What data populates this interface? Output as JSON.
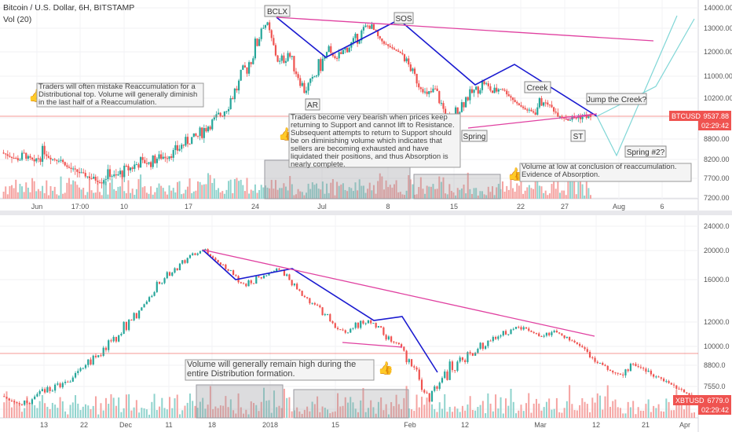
{
  "header": {
    "title": "Bitcoin / U.S. Dollar, 6H, BITSTAMP",
    "volume_label": "Vol (20)"
  },
  "colors": {
    "up": "#26a69a",
    "down": "#ef5350",
    "up_vol": "#8fd3cd",
    "down_vol": "#f5a3a1",
    "trend_blue": "#1a1ad0",
    "trend_pink": "#e040a0",
    "projection": "#7fd6d6",
    "price_tag": "#ef5350"
  },
  "top_panel": {
    "symbol": "BTCUSD",
    "last_price": "9537.88",
    "countdown": "02:29:42",
    "y_ticks": [
      "14000.00",
      "13000.00",
      "12000.00",
      "11000.00",
      "10200.00",
      "9500.00",
      "8800.00",
      "8200.00",
      "7700.00",
      "7200.00"
    ],
    "x_ticks": [
      "Jun",
      "17:00",
      "10",
      "17",
      "24",
      "Jul",
      "8",
      "15",
      "22",
      "27",
      "Aug",
      "6"
    ],
    "labels": {
      "bclx": "BCLX",
      "sos": "SOS",
      "ar": "AR",
      "creek": "Creek",
      "jump": "Jump the Creek?",
      "spring": "Spring",
      "st": "ST",
      "spring2": "Spring #2?"
    },
    "notes": {
      "reaccumulation": "Traders will often mistake Reaccumulation for a Distributional top. Volume will generally diminish in the last half of a Reaccumulation.",
      "bearish": "Traders become very bearish when prices keep returning to Support and cannot lift to Resistance. Subsequent attempts to return to Support should be on diminishing volume which indicates that sellers are becoming exhausted and have liquidated their positions, and thus Absorption is nearly complete.",
      "absorption": "Volume at low at conclusion of reaccumulation. Evidence of Absorption."
    },
    "chart_data": {
      "type": "candlestick",
      "title": "Bitcoin / U.S. Dollar, 6H, BITSTAMP",
      "ylim": [
        7200,
        14000
      ],
      "x_tick_labels": [
        "Jun",
        "17:00",
        "10",
        "17",
        "24",
        "Jul",
        "8",
        "15",
        "22",
        "27",
        "Aug",
        "6"
      ],
      "pivots": {
        "bclx": 13500,
        "ar": 10400,
        "sos": 13200,
        "spring": 9350,
        "st": 9450,
        "creek": 10600,
        "jump_target": 13200,
        "spring2_target": 8350
      },
      "price_path": [
        8400,
        8300,
        8200,
        8350,
        8150,
        8400,
        8200,
        8250,
        8000,
        7900,
        7800,
        7700,
        7650,
        7800,
        7750,
        7900,
        8000,
        8150,
        8100,
        8250,
        8300,
        8400,
        8600,
        8800,
        8900,
        9200,
        9400,
        9700,
        10200,
        10700,
        11400,
        12200,
        13500,
        12400,
        11500,
        12000,
        11200,
        10500,
        10800,
        11500,
        12000,
        11700,
        12100,
        12400,
        12800,
        13200,
        12600,
        12300,
        12100,
        11900,
        11300,
        10700,
        10300,
        10500,
        9800,
        9350,
        9900,
        10300,
        10500,
        10800,
        10400,
        10600,
        10300,
        10000,
        9800,
        9700,
        10100,
        9950,
        9600,
        9450,
        9500,
        9560,
        9537
      ]
    }
  },
  "bottom_panel": {
    "symbol": "XBTUSD",
    "last_price": "6779.0",
    "countdown": "02:29:42",
    "y_ticks": [
      "24000.0",
      "20000.0",
      "16000.0",
      "12000.0",
      "10000.0",
      "8800.0",
      "7550.0",
      "6250.0"
    ],
    "x_ticks": [
      "13",
      "22",
      "Dec",
      "11",
      "18",
      "2018",
      "15",
      "Feb",
      "12",
      "Mar",
      "12",
      "21",
      "Apr"
    ],
    "notes": {
      "distribution": "Volume will generally remain high during the entire Distribution formation."
    },
    "chart_data": {
      "type": "candlestick",
      "ylim": [
        6000,
        24000
      ],
      "x_tick_labels": [
        "13",
        "22",
        "Dec",
        "11",
        "18",
        "2018",
        "15",
        "Feb",
        "12",
        "Mar",
        "12",
        "21",
        "Apr"
      ],
      "price_path": [
        7000,
        6700,
        6500,
        6800,
        7200,
        7500,
        7800,
        8100,
        8500,
        9200,
        9800,
        10500,
        11500,
        12500,
        13500,
        15000,
        16500,
        17500,
        18500,
        19500,
        20000,
        19000,
        17500,
        16000,
        15500,
        16200,
        17000,
        17500,
        16500,
        15000,
        14000,
        13500,
        12500,
        11500,
        11000,
        11800,
        12200,
        11500,
        10500,
        10200,
        9000,
        8000,
        6800,
        7500,
        8500,
        9000,
        9500,
        10000,
        10500,
        11000,
        11300,
        11600,
        11200,
        10800,
        11400,
        11000,
        10400,
        10000,
        9200,
        8800,
        8400,
        8200,
        8800,
        8600,
        8200,
        7900,
        7600,
        7200,
        6779
      ]
    }
  }
}
